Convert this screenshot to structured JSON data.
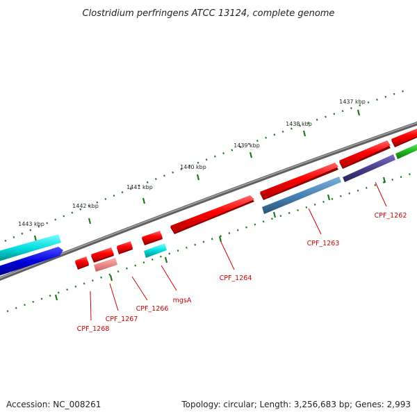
{
  "title": "Clostridium perfringens ATCC 13124, complete genome",
  "footer": {
    "accession": "Accession: NC_008261",
    "summary": "Topology: circular; Length: 3,256,683 bp; Genes: 2,993"
  },
  "scale_labels": [
    "1437 kbp",
    "1438 kbp",
    "1439 kbp",
    "1440 kbp",
    "1441 kbp",
    "1442 kbp",
    "1443 kbp"
  ],
  "gene_labels": [
    "CPF_1262",
    "CPF_1263",
    "CPF_1264",
    "mgsA",
    "CPF_1266",
    "CPF_1267",
    "CPF_1268"
  ],
  "colors": {
    "backbone": "#808080",
    "cds": "#ff0000",
    "cds_light": "#f08080",
    "cyan": "#00cccc",
    "blue": "#0000dd",
    "steelblue": "#4682b4",
    "slateblue": "#483d8b",
    "green": "#22bb22",
    "tick": "#006400"
  }
}
